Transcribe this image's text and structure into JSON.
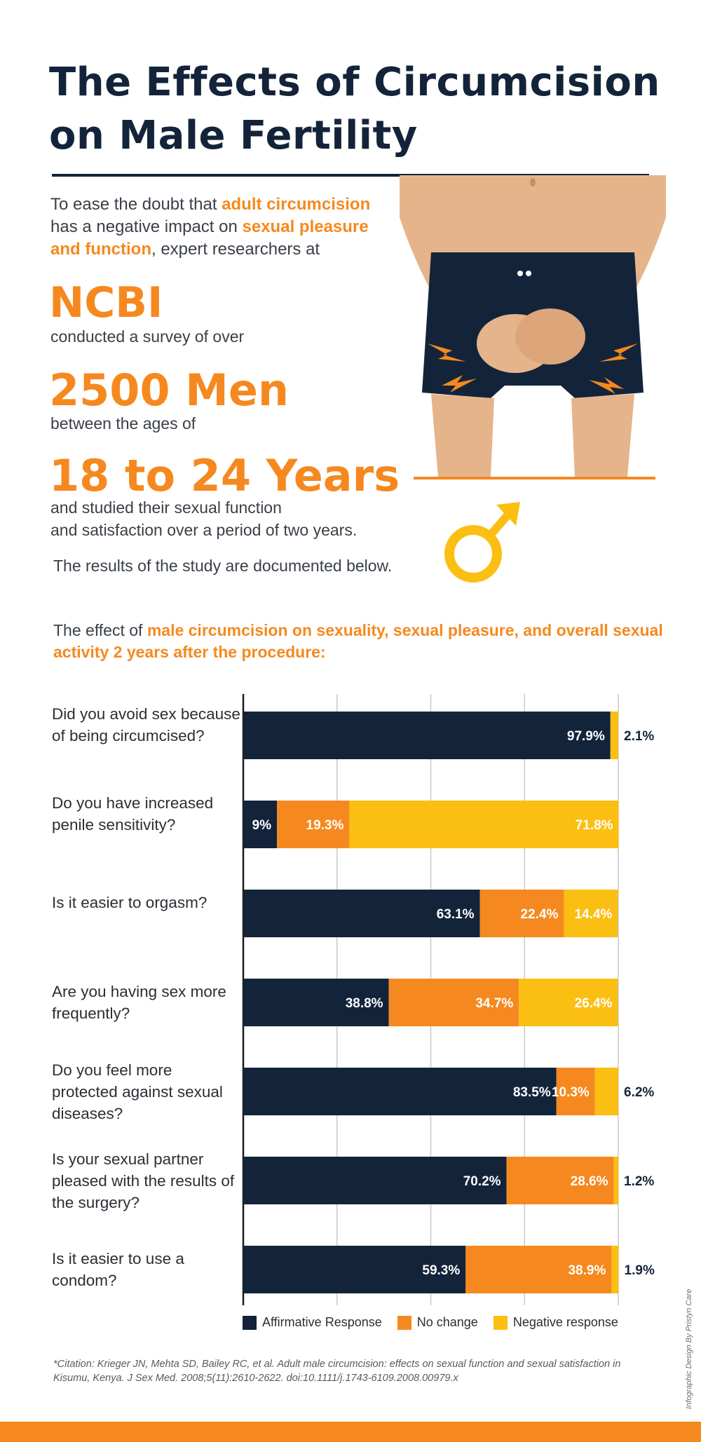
{
  "title": "The Effects of Circumcision on Male Fertility",
  "intro": {
    "p1": "To ease the doubt that ",
    "hl1": "adult circumcision",
    "p2": " has a negative impact on ",
    "hl2": "sexual pleasure and function",
    "p3": ", expert researchers at"
  },
  "org": "NCBI",
  "org_sub": "conducted a survey of over",
  "count": "2500 Men",
  "count_sub": "between the ages of",
  "ages": "18 to 24 Years",
  "ages_sub1": "and studied their sexual function",
  "ages_sub2": "and satisfaction over a period of two years.",
  "results_note": "The results of the study are documented below.",
  "effect_note": {
    "lead": "The effect of ",
    "hl": "male circumcision on sexuality, sexual pleasure, and overall sexual activity 2 years after the procedure:"
  },
  "colors": {
    "navy": "#13243a",
    "orange": "#f5891f",
    "yellow": "#fbbf13",
    "skin": "#e6b48a"
  },
  "icons": [
    "male-symbol-icon",
    "lightning-icon"
  ],
  "chart_data": {
    "type": "bar",
    "orientation": "horizontal",
    "stacked": true,
    "grid": true,
    "xlim": [
      0,
      100
    ],
    "categories": [
      "Did you avoid sex because of being circumcised?",
      "Do you have increased penile sensitivity?",
      "Is it easier to orgasm?",
      "Are you having sex more frequently?",
      "Do you feel more protected against sexual diseases?",
      "Is your sexual partner pleased with the results of the surgery?",
      "Is it easier to use a condom?"
    ],
    "series": [
      {
        "name": "Affirmative Response",
        "color": "#13243a",
        "values": [
          97.9,
          9,
          63.1,
          38.8,
          83.5,
          70.2,
          59.3
        ],
        "labels": [
          "97.9%",
          "9%",
          "63.1%",
          "38.8%",
          "83.5%",
          "70.2%",
          "59.3%"
        ]
      },
      {
        "name": "No change",
        "color": "#f5891f",
        "values": [
          0,
          19.3,
          22.4,
          34.7,
          10.3,
          28.6,
          38.9
        ],
        "labels": [
          "",
          "19.3%",
          "22.4%",
          "34.7%",
          "10.3%",
          "28.6%",
          "38.9%"
        ]
      },
      {
        "name": "Negative response",
        "color": "#fbbf13",
        "values": [
          2.1,
          71.8,
          14.4,
          26.4,
          6.2,
          1.2,
          1.9
        ],
        "labels": [
          "2.1%",
          "71.8%",
          "14.4%",
          "26.4%",
          "6.2%",
          "1.2%",
          "1.9%"
        ]
      }
    ],
    "legend_position": "bottom"
  },
  "citation": "*Citation: Krieger JN, Mehta SD, Bailey RC, et al. Adult male circumcision: effects on sexual function and sexual satisfaction in Kisumu, Kenya. J Sex Med. 2008;5(11):2610-2622. doi:10.1111/j.1743-6109.2008.00979.x",
  "credit": "Infographic Design By Pristyn Care"
}
